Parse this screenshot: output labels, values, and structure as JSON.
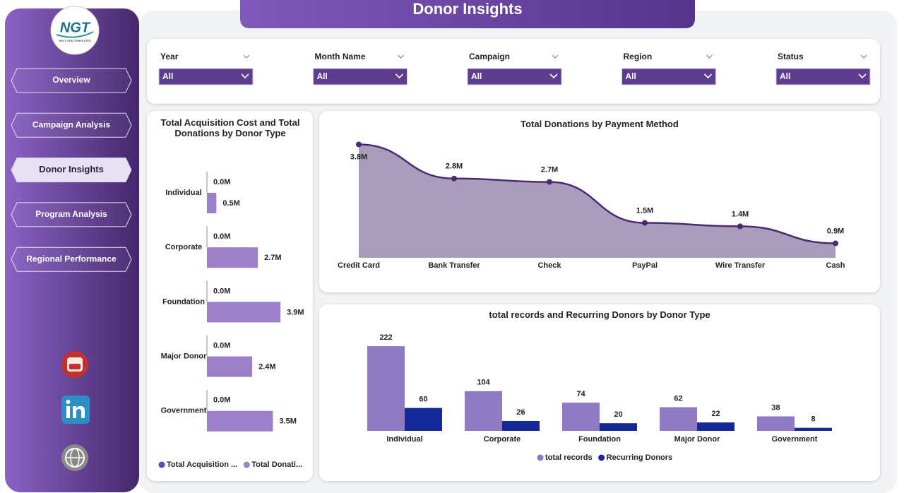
{
  "header": {
    "title": "Donor Insights"
  },
  "logo": {
    "text": "NGT",
    "subtitle": "NEXT GEN TEMPLATES"
  },
  "nav": [
    "Overview",
    "Campaign Analysis",
    "Donor Insights",
    "Program Analysis",
    "Regional Performance"
  ],
  "nav_active": 2,
  "filters": [
    {
      "label": "Year",
      "value": "All"
    },
    {
      "label": "Month Name",
      "value": "All"
    },
    {
      "label": "Campaign",
      "value": "All"
    },
    {
      "label": "Region",
      "value": "All"
    },
    {
      "label": "Status",
      "value": "All"
    }
  ],
  "chart_data": [
    {
      "type": "hbar",
      "title": "Total Acquisition Cost and Total Donations by Donor Type",
      "categories": [
        "Individual",
        "Corporate",
        "Foundation",
        "Major Donor",
        "Government"
      ],
      "series": [
        {
          "name": "Total Acquisition ...",
          "color": "#6f42b8",
          "values": [
            0,
            0,
            0,
            0,
            0
          ],
          "value_labels": [
            "0.0M",
            "0.0M",
            "0.0M",
            "0.0M",
            "0.0M"
          ]
        },
        {
          "name": "Total Donati...",
          "color": "#9b7fc8",
          "values": [
            0.5,
            2.7,
            3.9,
            2.4,
            3.5
          ],
          "value_labels": [
            "0.5M",
            "2.7M",
            "3.9M",
            "2.4M",
            "3.5M"
          ]
        }
      ]
    },
    {
      "type": "area",
      "title": "Total Donations by Payment Method",
      "categories": [
        "Credit Card",
        "Bank Transfer",
        "Check",
        "PayPal",
        "Wire Transfer",
        "Cash"
      ],
      "values": [
        3.8,
        2.8,
        2.7,
        1.5,
        1.4,
        0.9
      ],
      "value_labels": [
        "3.8M",
        "2.8M",
        "2.7M",
        "1.5M",
        "1.4M",
        "0.9M"
      ],
      "color": "#4b2a72",
      "fill": "#a99cbc"
    },
    {
      "type": "bar",
      "title": "total records and Recurring Donors by Donor Type",
      "categories": [
        "Individual",
        "Corporate",
        "Foundation",
        "Major Donor",
        "Government"
      ],
      "series": [
        {
          "name": "total records",
          "color": "#8f7bc4",
          "values": [
            222,
            104,
            74,
            62,
            38
          ]
        },
        {
          "name": "Recurring Donors",
          "color": "#15289a",
          "values": [
            60,
            26,
            20,
            22,
            8
          ]
        }
      ]
    }
  ]
}
